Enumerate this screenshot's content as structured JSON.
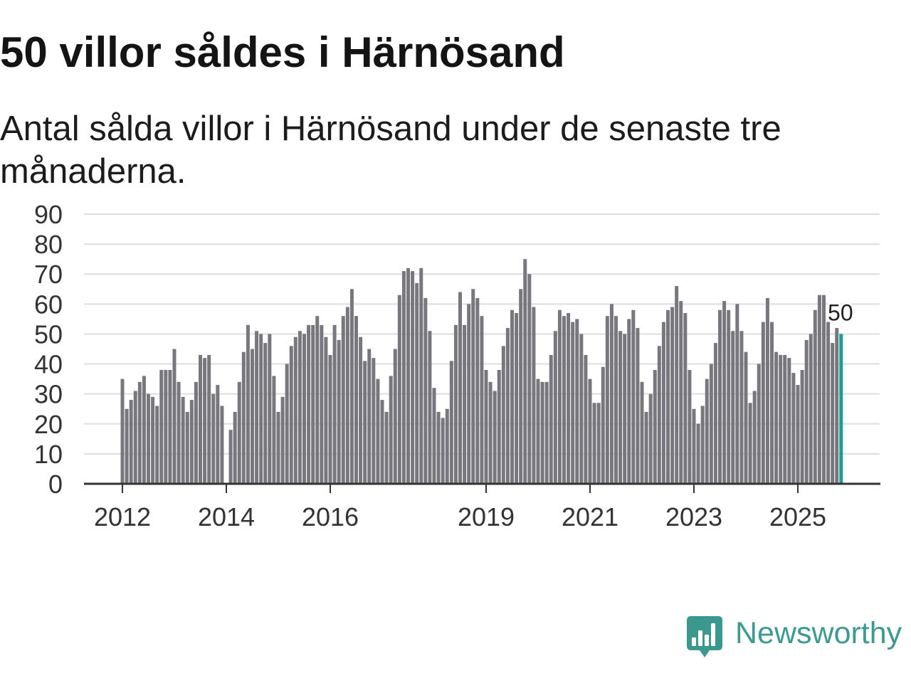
{
  "chart_data": {
    "type": "bar",
    "title": "50 villor såldes i Härnösand",
    "subtitle": "Antal sålda villor i Härnösand under de senaste tre månaderna.",
    "ylim": [
      0,
      90
    ],
    "yticks": [
      0,
      10,
      20,
      30,
      40,
      50,
      60,
      70,
      80,
      90
    ],
    "xtick_labels": [
      "2012",
      "2014",
      "2016",
      "2019",
      "2021",
      "2023",
      "2025"
    ],
    "grid": true,
    "monthly_values": [
      {
        "year": 2012,
        "values": [
          35,
          25,
          28,
          31,
          34,
          36,
          30,
          29,
          26,
          38,
          38,
          38
        ]
      },
      {
        "year": 2013,
        "values": [
          45,
          34,
          29,
          24,
          28,
          34,
          43,
          42,
          43,
          30,
          33,
          26
        ]
      },
      {
        "year": 2014,
        "values": [
          null,
          18,
          24,
          34,
          44,
          53,
          45,
          51,
          50,
          47,
          50,
          36
        ]
      },
      {
        "year": 2015,
        "values": [
          24,
          29,
          40,
          46,
          49,
          51,
          50,
          53,
          53,
          56,
          53,
          49
        ]
      },
      {
        "year": 2016,
        "values": [
          43,
          53,
          48,
          56,
          59,
          65,
          56,
          49,
          41,
          45,
          42,
          35
        ]
      },
      {
        "year": 2017,
        "values": [
          28,
          24,
          36,
          45,
          63,
          71,
          72,
          71,
          67,
          72,
          62,
          51
        ]
      },
      {
        "year": 2018,
        "values": [
          32,
          24,
          22,
          25,
          41,
          53,
          64,
          53,
          60,
          65,
          62,
          56
        ]
      },
      {
        "year": 2019,
        "values": [
          38,
          34,
          31,
          38,
          46,
          52,
          58,
          57,
          65,
          75,
          70,
          59
        ]
      },
      {
        "year": 2020,
        "values": [
          35,
          34,
          34,
          43,
          51,
          58,
          56,
          57,
          54,
          55,
          50,
          43
        ]
      },
      {
        "year": 2021,
        "values": [
          35,
          27,
          27,
          39,
          56,
          60,
          56,
          51,
          50,
          55,
          58,
          52
        ]
      },
      {
        "year": 2022,
        "values": [
          34,
          24,
          30,
          38,
          46,
          54,
          58,
          59,
          66,
          61,
          57,
          38
        ]
      },
      {
        "year": 2023,
        "values": [
          25,
          20,
          26,
          35,
          40,
          47,
          58,
          61,
          58,
          51,
          60,
          51
        ]
      },
      {
        "year": 2024,
        "values": [
          44,
          27,
          31,
          40,
          54,
          62,
          54,
          44,
          43,
          43,
          42,
          37
        ]
      },
      {
        "year": 2025,
        "values": [
          33,
          38,
          48,
          50,
          58,
          63,
          63,
          54,
          47,
          52,
          50
        ]
      }
    ],
    "highlight": {
      "year": 2025,
      "month": 11,
      "value": 50,
      "label": "50"
    },
    "colors": {
      "bar": "#78777d",
      "highlight": "#179f97",
      "grid": "#dddddd",
      "axis": "#333333",
      "text": "#333333",
      "label": "#222222"
    }
  },
  "brand": {
    "name": "Newsworthy",
    "icon": "newsworthy-logo-icon",
    "color": "#3c9a90"
  }
}
